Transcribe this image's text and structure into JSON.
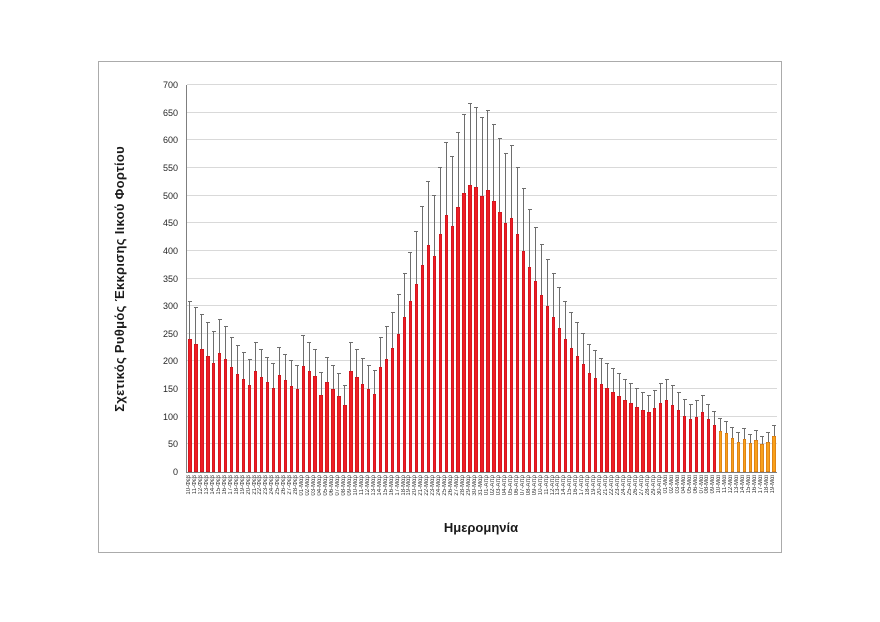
{
  "chart_data": {
    "type": "bar",
    "title": "",
    "xlabel": "Ημερομηνία",
    "ylabel": "Σχετικός Ρυθμός Έκκρισης Ιικού Φορτίου",
    "ylim": [
      0,
      700
    ],
    "ytick_step": 50,
    "grid": true,
    "legend": "none",
    "bar_color": "#ee1c25",
    "highlight_color": "#f9a11b",
    "highlight_start_index": 89,
    "error_color": "#6e6e6e",
    "categories": [
      "10-Φεβ",
      "11-Φεβ",
      "12-Φεβ",
      "13-Φεβ",
      "14-Φεβ",
      "15-Φεβ",
      "16-Φεβ",
      "17-Φεβ",
      "18-Φεβ",
      "19-Φεβ",
      "20-Φεβ",
      "21-Φεβ",
      "22-Φεβ",
      "23-Φεβ",
      "24-Φεβ",
      "25-Φεβ",
      "26-Φεβ",
      "27-Φεβ",
      "28-Φεβ",
      "01-Μαρ",
      "02-Μαρ",
      "03-Μαρ",
      "04-Μαρ",
      "05-Μαρ",
      "06-Μαρ",
      "07-Μαρ",
      "08-Μαρ",
      "09-Μαρ",
      "10-Μαρ",
      "11-Μαρ",
      "12-Μαρ",
      "13-Μαρ",
      "14-Μαρ",
      "15-Μαρ",
      "16-Μαρ",
      "17-Μαρ",
      "18-Μαρ",
      "19-Μαρ",
      "20-Μαρ",
      "21-Μαρ",
      "22-Μαρ",
      "23-Μαρ",
      "24-Μαρ",
      "25-Μαρ",
      "26-Μαρ",
      "27-Μαρ",
      "28-Μαρ",
      "29-Μαρ",
      "30-Μαρ",
      "31-Μαρ",
      "01-Απρ",
      "02-Απρ",
      "03-Απρ",
      "04-Απρ",
      "05-Απρ",
      "06-Απρ",
      "07-Απρ",
      "08-Απρ",
      "09-Απρ",
      "10-Απρ",
      "11-Απρ",
      "12-Απρ",
      "13-Απρ",
      "14-Απρ",
      "15-Απρ",
      "16-Απρ",
      "17-Απρ",
      "18-Απρ",
      "19-Απρ",
      "20-Απρ",
      "21-Απρ",
      "22-Απρ",
      "23-Απρ",
      "24-Απρ",
      "25-Απρ",
      "26-Απρ",
      "27-Απρ",
      "28-Απρ",
      "29-Απρ",
      "30-Απρ",
      "01-Μαϊ",
      "02-Μαϊ",
      "03-Μαϊ",
      "04-Μαϊ",
      "05-Μαϊ",
      "06-Μαϊ",
      "07-Μαϊ",
      "08-Μαϊ",
      "09-Μαϊ",
      "10-Μαϊ",
      "11-Μαϊ",
      "12-Μαϊ",
      "13-Μαϊ",
      "14-Μαϊ",
      "15-Μαϊ",
      "16-Μαϊ",
      "17-Μαϊ",
      "18-Μαϊ",
      "19-Μαϊ"
    ],
    "values": [
      240,
      232,
      222,
      210,
      198,
      215,
      205,
      190,
      178,
      168,
      158,
      182,
      172,
      162,
      152,
      176,
      166,
      156,
      150,
      192,
      183,
      173,
      140,
      162,
      150,
      138,
      122,
      182,
      172,
      160,
      150,
      142,
      190,
      205,
      225,
      250,
      280,
      310,
      340,
      375,
      410,
      390,
      430,
      465,
      445,
      480,
      505,
      520,
      515,
      500,
      510,
      490,
      470,
      450,
      460,
      430,
      400,
      370,
      345,
      320,
      300,
      280,
      260,
      240,
      225,
      210,
      195,
      180,
      170,
      160,
      152,
      145,
      138,
      130,
      125,
      118,
      112,
      108,
      115,
      125,
      130,
      122,
      112,
      102,
      95,
      100,
      108,
      95,
      85,
      75,
      70,
      62,
      55,
      60,
      52,
      58,
      50,
      55,
      65
    ],
    "errors": [
      67,
      65,
      62,
      59,
      55,
      60,
      57,
      53,
      50,
      47,
      44,
      51,
      48,
      45,
      43,
      49,
      46,
      44,
      42,
      54,
      51,
      48,
      39,
      45,
      42,
      39,
      34,
      51,
      48,
      45,
      42,
      40,
      53,
      57,
      63,
      70,
      78,
      87,
      95,
      105,
      115,
      109,
      120,
      130,
      125,
      134,
      141,
      146,
      144,
      140,
      143,
      137,
      132,
      126,
      129,
      120,
      112,
      104,
      97,
      90,
      84,
      78,
      73,
      67,
      63,
      59,
      55,
      50,
      48,
      45,
      43,
      41,
      39,
      36,
      35,
      33,
      31,
      30,
      32,
      35,
      36,
      34,
      31,
      29,
      27,
      28,
      30,
      27,
      24,
      21,
      20,
      17,
      15,
      17,
      15,
      16,
      14,
      15,
      18
    ]
  }
}
